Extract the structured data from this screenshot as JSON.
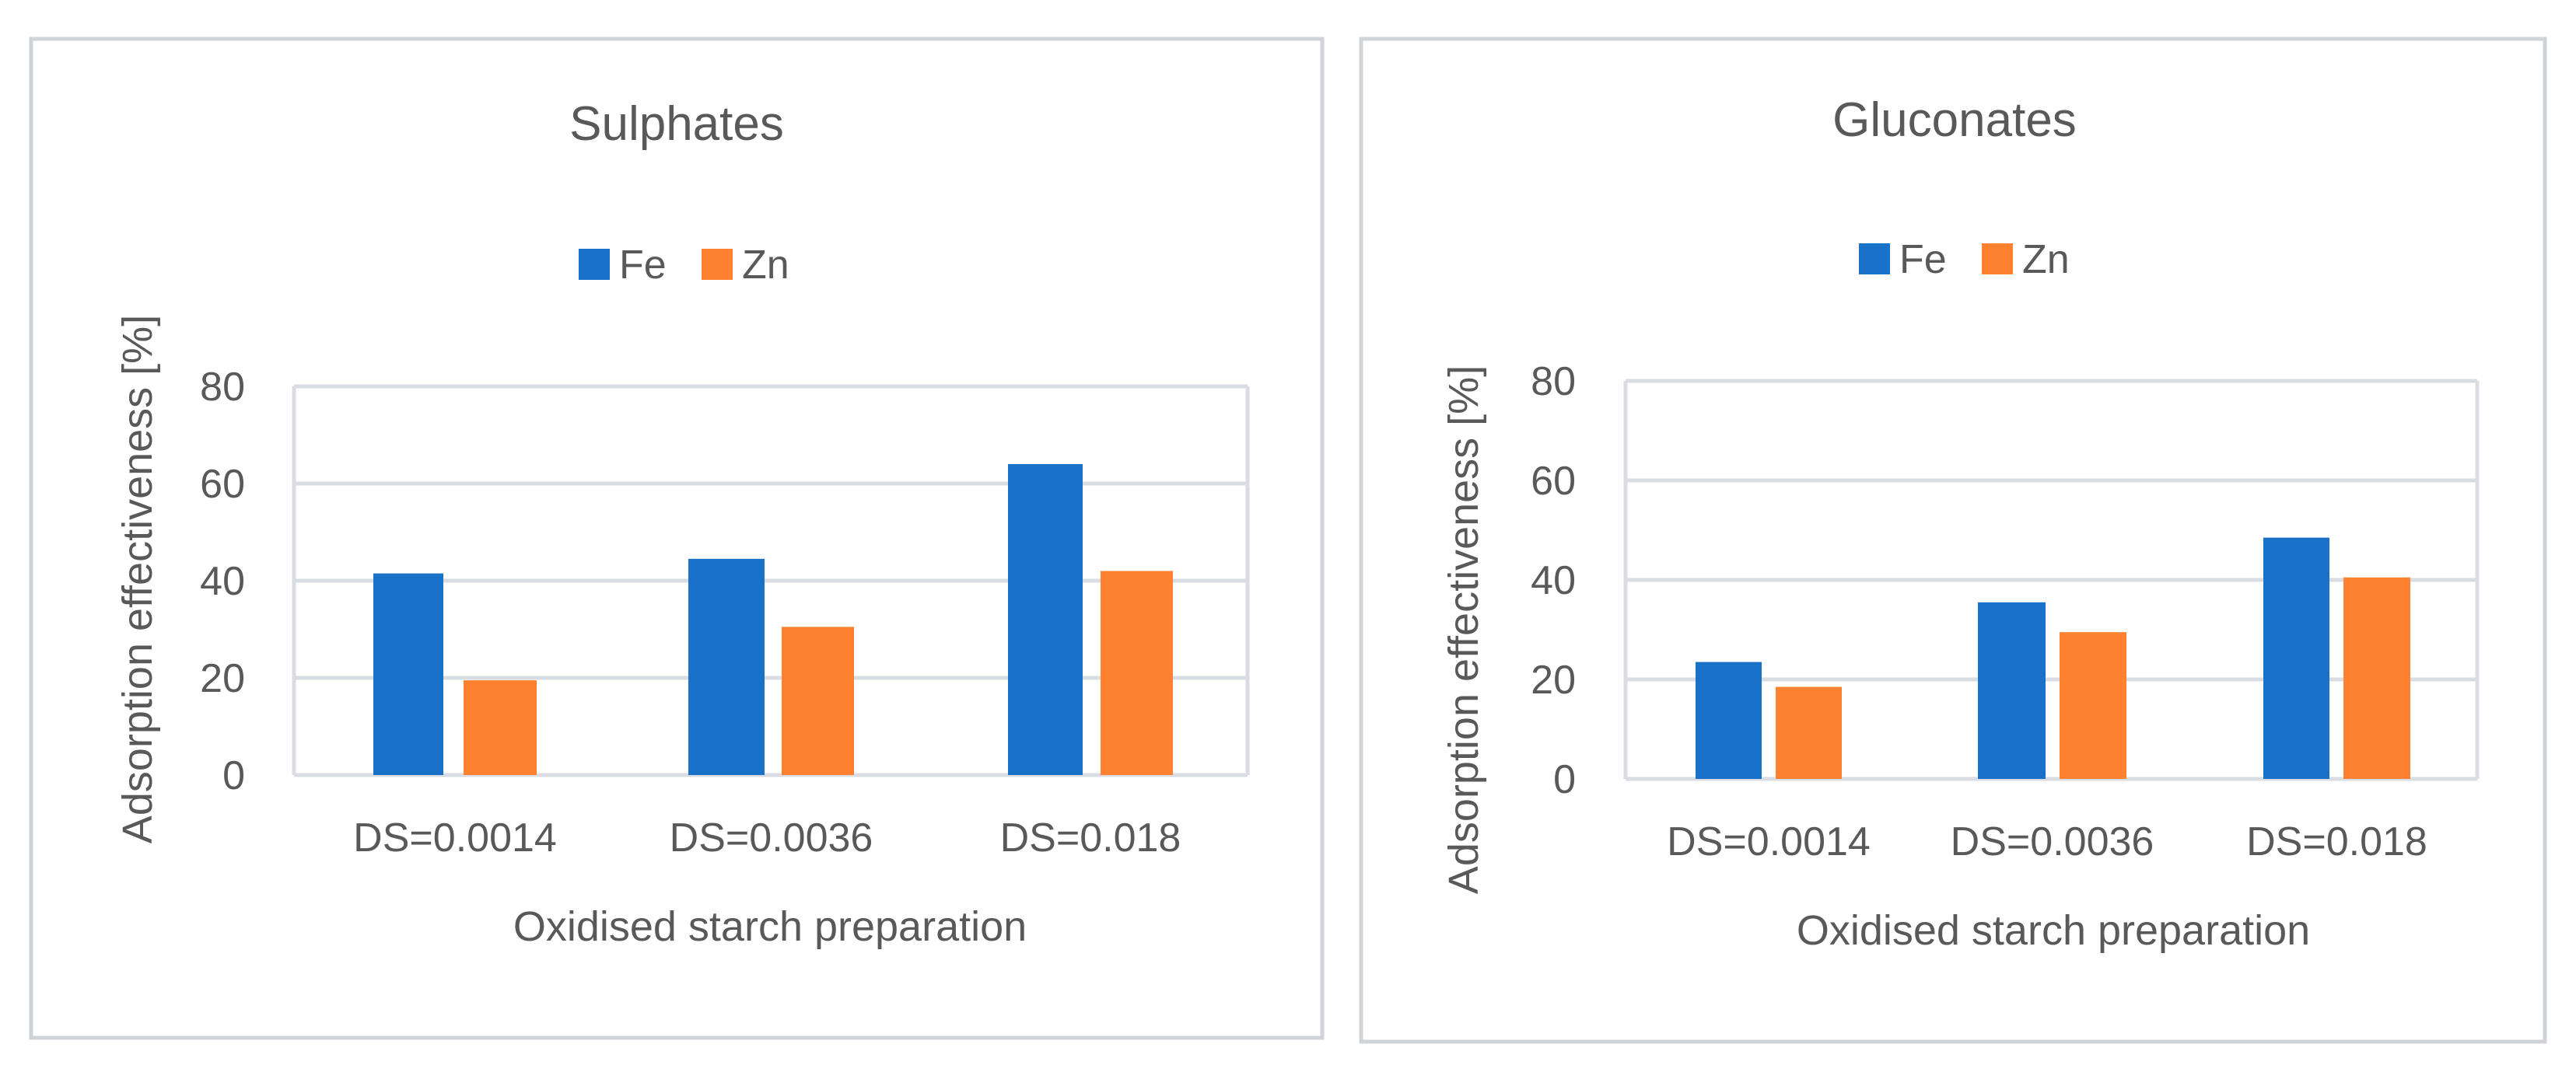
{
  "colors": {
    "series": [
      "#1a71c8",
      "#fd812f"
    ],
    "text": "#595959",
    "gridline": "#d9dde3",
    "frame": "#d0d4d8"
  },
  "chart_data": [
    {
      "type": "bar",
      "title": "Sulphates",
      "xlabel": "Oxidised starch preparation",
      "ylabel": "Adsorption effectiveness [%]",
      "categories": [
        "DS=0.0014",
        "DS=0.0036",
        "DS=0.018"
      ],
      "series": [
        {
          "name": "Fe",
          "values": [
            41.5,
            44.5,
            64
          ]
        },
        {
          "name": "Zn",
          "values": [
            19.5,
            30.5,
            42
          ]
        }
      ],
      "ylim": [
        0,
        80
      ],
      "yticks": [
        0,
        20,
        40,
        60,
        80
      ],
      "grid": true,
      "legend": "top-center"
    },
    {
      "type": "bar",
      "title": "Gluconates",
      "xlabel": "Oxidised starch preparation",
      "ylabel": "Adsorption effectiveness [%]",
      "categories": [
        "DS=0.0014",
        "DS=0.0036",
        "DS=0.018"
      ],
      "series": [
        {
          "name": "Fe",
          "values": [
            23.5,
            35.5,
            48.5
          ]
        },
        {
          "name": "Zn",
          "values": [
            18.5,
            29.5,
            40.5
          ]
        }
      ],
      "ylim": [
        0,
        80
      ],
      "yticks": [
        0,
        20,
        40,
        60,
        80
      ],
      "grid": true,
      "legend": "top-center"
    }
  ]
}
